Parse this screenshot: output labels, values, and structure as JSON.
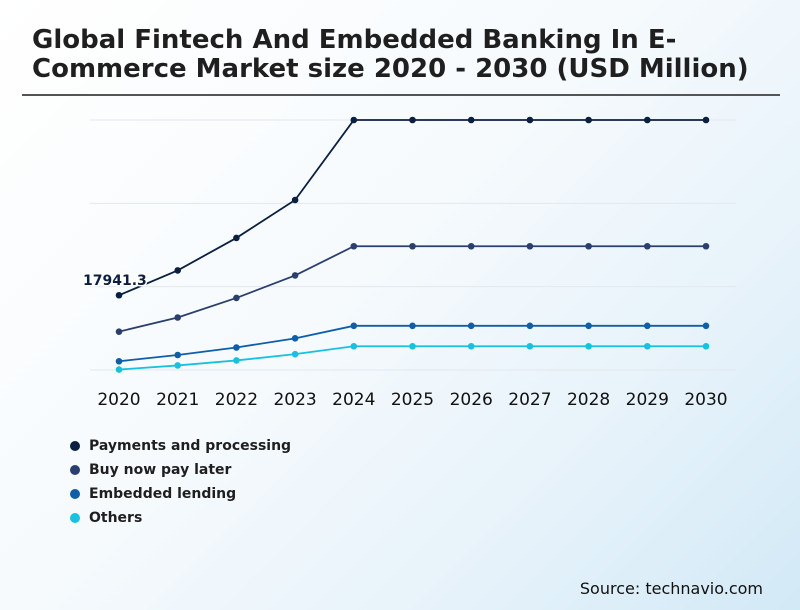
{
  "title": "Global Fintech And Embedded Banking In E-Commerce Market size 2020 - 2030 (USD Million)",
  "source": "Source: technavio.com",
  "chart_data": {
    "type": "line",
    "title": "Global Fintech And Embedded Banking In E-Commerce Market size 2020 - 2030 (USD Million)",
    "xlabel": "",
    "ylabel": "",
    "x": [
      "2020",
      "2021",
      "2022",
      "2023",
      "2024",
      "2025",
      "2026",
      "2027",
      "2028",
      "2029",
      "2030"
    ],
    "ylim": [
      0,
      60000
    ],
    "grid": true,
    "legend_position": "bottom-left",
    "annotation": {
      "label": "17941.3",
      "series": "Payments and processing",
      "x": "2020"
    },
    "series": [
      {
        "name": "Payments and processing",
        "color": "#0b1f40",
        "values": [
          17941.3,
          23900,
          31700,
          40800,
          60000,
          60000,
          60000,
          60000,
          60000,
          60000,
          60000
        ]
      },
      {
        "name": "Buy now pay later",
        "color": "#2b3f6e",
        "values": [
          9200,
          12600,
          17300,
          22700,
          29700,
          29700,
          29700,
          29700,
          29700,
          29700,
          29700
        ]
      },
      {
        "name": "Embedded lending",
        "color": "#0f5ea8",
        "values": [
          2100,
          3600,
          5400,
          7600,
          10600,
          10600,
          10600,
          10600,
          10600,
          10600,
          10600
        ]
      },
      {
        "name": "Others",
        "color": "#19c1e0",
        "values": [
          100,
          1100,
          2300,
          3800,
          5700,
          5700,
          5700,
          5700,
          5700,
          5700,
          5700
        ]
      }
    ]
  }
}
